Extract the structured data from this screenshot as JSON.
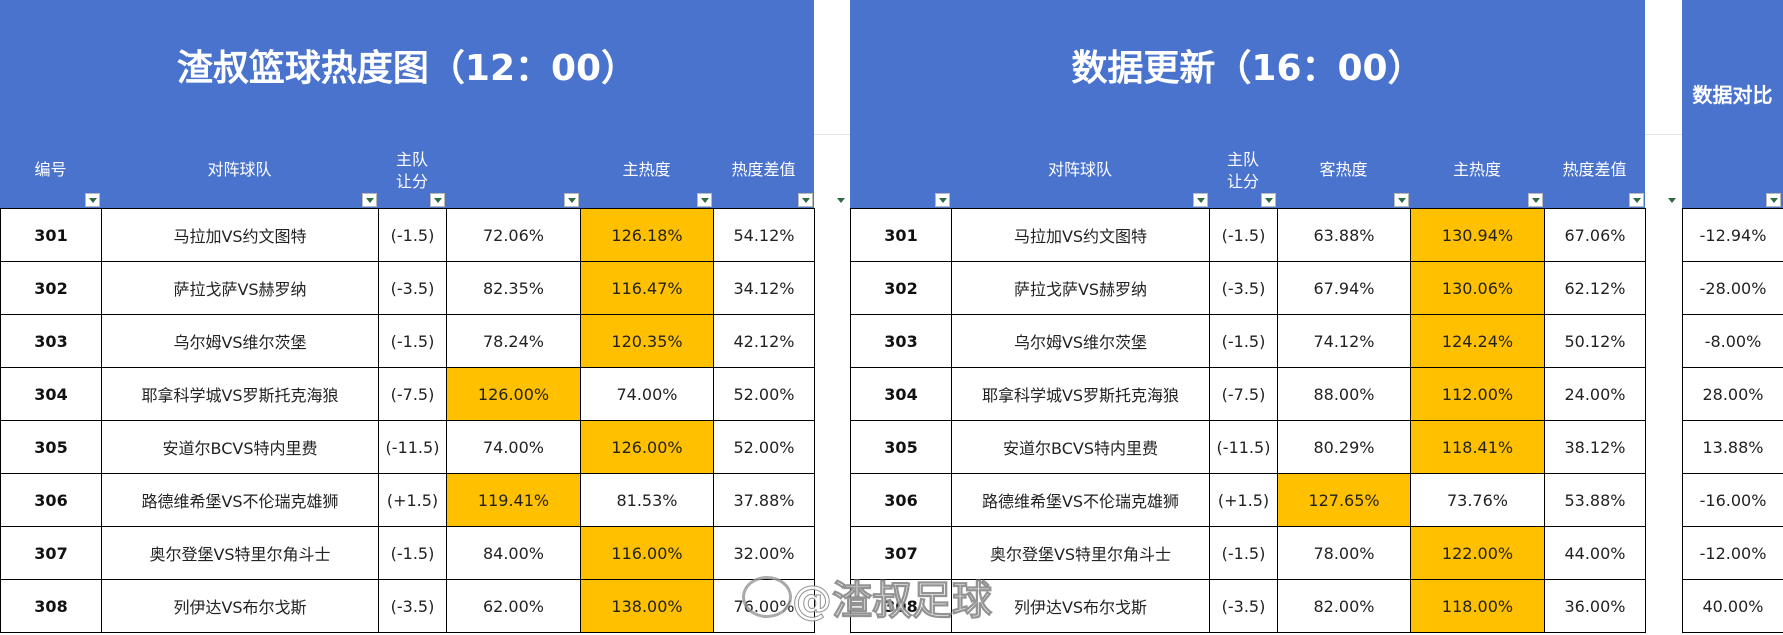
{
  "left_panel": {
    "title": "渣叔篮球热度图（12：00）",
    "headers": [
      "编号",
      "对阵球队",
      "主队\n让分",
      "",
      "主热度",
      "热度差值"
    ],
    "rows": [
      {
        "id": "301",
        "match": "马拉加VS约文图特",
        "handicap": "(-1.5)",
        "away": "72.06%",
        "home": "126.18%",
        "diff": "54.12%",
        "hl": "home"
      },
      {
        "id": "302",
        "match": "萨拉戈萨VS赫罗纳",
        "handicap": "(-3.5)",
        "away": "82.35%",
        "home": "116.47%",
        "diff": "34.12%",
        "hl": "home"
      },
      {
        "id": "303",
        "match": "乌尔姆VS维尔茨堡",
        "handicap": "(-1.5)",
        "away": "78.24%",
        "home": "120.35%",
        "diff": "42.12%",
        "hl": "home"
      },
      {
        "id": "304",
        "match": "耶拿科学城VS罗斯托克海狼",
        "handicap": "(-7.5)",
        "away": "126.00%",
        "home": "74.00%",
        "diff": "52.00%",
        "hl": "away"
      },
      {
        "id": "305",
        "match": "安道尔BCVS特内里费",
        "handicap": "(-11.5)",
        "away": "74.00%",
        "home": "126.00%",
        "diff": "52.00%",
        "hl": "home"
      },
      {
        "id": "306",
        "match": "路德维希堡VS不伦瑞克雄狮",
        "handicap": "(+1.5)",
        "away": "119.41%",
        "home": "81.53%",
        "diff": "37.88%",
        "hl": "away"
      },
      {
        "id": "307",
        "match": "奥尔登堡VS特里尔角斗士",
        "handicap": "(-1.5)",
        "away": "84.00%",
        "home": "116.00%",
        "diff": "32.00%",
        "hl": "home"
      },
      {
        "id": "308",
        "match": "列伊达VS布尔戈斯",
        "handicap": "(-3.5)",
        "away": "62.00%",
        "home": "138.00%",
        "diff": "76.00%",
        "hl": "home"
      }
    ]
  },
  "right_panel": {
    "title": "数据更新（16：00）",
    "headers": [
      "",
      "对阵球队",
      "主队\n让分",
      "客热度",
      "主热度",
      "热度差值"
    ],
    "rows": [
      {
        "id": "301",
        "match": "马拉加VS约文图特",
        "handicap": "(-1.5)",
        "away": "63.88%",
        "home": "130.94%",
        "diff": "67.06%",
        "hl": "home"
      },
      {
        "id": "302",
        "match": "萨拉戈萨VS赫罗纳",
        "handicap": "(-3.5)",
        "away": "67.94%",
        "home": "130.06%",
        "diff": "62.12%",
        "hl": "home"
      },
      {
        "id": "303",
        "match": "乌尔姆VS维尔茨堡",
        "handicap": "(-1.5)",
        "away": "74.12%",
        "home": "124.24%",
        "diff": "50.12%",
        "hl": "home"
      },
      {
        "id": "304",
        "match": "耶拿科学城VS罗斯托克海狼",
        "handicap": "(-7.5)",
        "away": "88.00%",
        "home": "112.00%",
        "diff": "24.00%",
        "hl": "home"
      },
      {
        "id": "305",
        "match": "安道尔BCVS特内里费",
        "handicap": "(-11.5)",
        "away": "80.29%",
        "home": "118.41%",
        "diff": "38.12%",
        "hl": "home"
      },
      {
        "id": "306",
        "match": "路德维希堡VS不伦瑞克雄狮",
        "handicap": "(+1.5)",
        "away": "127.65%",
        "home": "73.76%",
        "diff": "53.88%",
        "hl": "away"
      },
      {
        "id": "307",
        "match": "奥尔登堡VS特里尔角斗士",
        "handicap": "(-1.5)",
        "away": "78.00%",
        "home": "122.00%",
        "diff": "44.00%",
        "hl": "home"
      },
      {
        "id": "308",
        "match": "列伊达VS布尔戈斯",
        "handicap": "(-3.5)",
        "away": "82.00%",
        "home": "118.00%",
        "diff": "36.00%",
        "hl": "home"
      }
    ]
  },
  "compare_panel": {
    "title": "数据对比",
    "values": [
      "-12.94%",
      "-28.00%",
      "-8.00%",
      "28.00%",
      "13.88%",
      "-16.00%",
      "-12.00%",
      "40.00%"
    ]
  },
  "watermark": "@渣叔足球",
  "colors": {
    "header_bg": "#4a73cd",
    "highlight": "#ffc000"
  }
}
